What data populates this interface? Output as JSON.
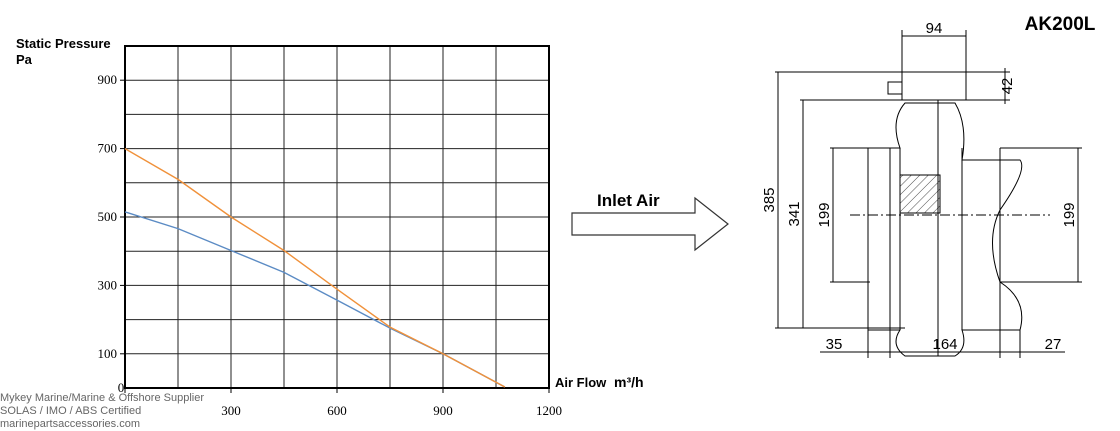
{
  "chart_data": {
    "type": "line",
    "ylabel": "Static Pressure",
    "yunit": "Pa",
    "xlabel": "Air Flow",
    "xunit": "m³/h",
    "x": [
      0,
      150,
      300,
      450,
      600,
      750,
      900,
      1075
    ],
    "series": [
      {
        "color": "#5b8bc4",
        "values": [
          515,
          466,
          402,
          338,
          257,
          175,
          100,
          3
        ]
      },
      {
        "color": "#f0913a",
        "values": [
          700,
          610,
          500,
          402,
          289,
          178,
          100,
          3
        ]
      }
    ],
    "xlim": [
      0,
      1200
    ],
    "ylim": [
      0,
      1000
    ],
    "xticks": [
      0,
      300,
      600,
      900,
      1200
    ],
    "yticks": [
      100,
      300,
      500,
      700,
      900
    ],
    "xgrid": [
      0,
      150,
      300,
      450,
      600,
      750,
      900,
      1050,
      1200
    ],
    "ygrid": [
      0,
      100,
      200,
      300,
      400,
      500,
      600,
      700,
      800,
      900,
      1000
    ]
  },
  "arrow": {
    "label": "Inlet Air"
  },
  "drawing": {
    "model": "AK200L",
    "dims": {
      "top_width": "94",
      "top_height": "42",
      "total_height": "385",
      "inner_height": "341",
      "left_inlet": "199",
      "right_inlet": "199",
      "left_offset": "35",
      "body_width": "164",
      "right_offset": "27"
    }
  },
  "watermark": [
    "Mykey Marine/Marine & Offshore Supplier",
    "SOLAS / IMO / ABS Certified",
    "marinepartsaccessories.com"
  ]
}
